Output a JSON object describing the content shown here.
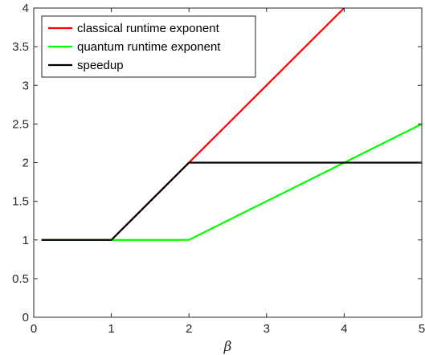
{
  "chart_data": {
    "type": "line",
    "title": "",
    "xlabel": "β",
    "ylabel": "",
    "xlim": [
      0,
      5
    ],
    "ylim": [
      0,
      4
    ],
    "xticks": [
      0,
      1,
      2,
      3,
      4,
      5
    ],
    "yticks": [
      0,
      0.5,
      1,
      1.5,
      2,
      2.5,
      3,
      3.5,
      4
    ],
    "xtick_labels": [
      "0",
      "1",
      "2",
      "3",
      "4",
      "5"
    ],
    "ytick_labels": [
      "0",
      "0.5",
      "1",
      "1.5",
      "2",
      "2.5",
      "3",
      "3.5",
      "4"
    ],
    "grid": false,
    "legend_position": "top-left",
    "series": [
      {
        "name": "classical runtime exponent",
        "color": "#ff0000",
        "x": [
          0.1,
          1,
          2,
          4
        ],
        "y": [
          1,
          1,
          2,
          4
        ]
      },
      {
        "name": "quantum runtime exponent",
        "color": "#00ff00",
        "x": [
          0.1,
          1,
          2,
          5
        ],
        "y": [
          1,
          1,
          1,
          2.5
        ]
      },
      {
        "name": "speedup",
        "color": "#000000",
        "x": [
          0.1,
          1,
          2,
          5
        ],
        "y": [
          1,
          1,
          2,
          2
        ]
      }
    ]
  }
}
